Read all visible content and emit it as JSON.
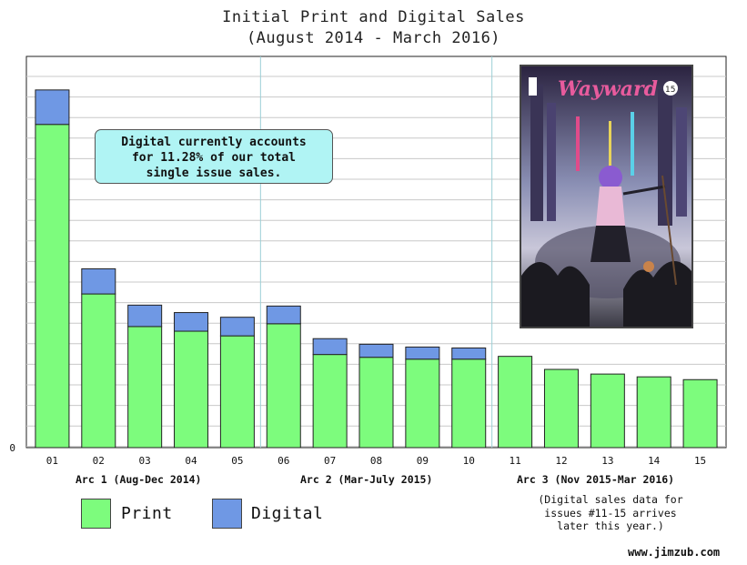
{
  "title_line1": "Initial Print and Digital Sales",
  "title_line2": "(August 2014 - March 2016)",
  "callout": {
    "line1": "Digital currently accounts",
    "line2": "for 11.28% of our total",
    "line3": "single issue sales."
  },
  "arcs": [
    {
      "label": "Arc 1 (Aug-Dec 2014)"
    },
    {
      "label": "Arc 2 (Mar-July 2015)"
    },
    {
      "label": "Arc 3 (Nov 2015-Mar 2016)"
    }
  ],
  "legend": {
    "print": "Print",
    "digital": "Digital"
  },
  "note": {
    "line1": "(Digital sales data for",
    "line2": "issues #11-15 arrives",
    "line3": "later this year.)"
  },
  "credit": "www.jimzub.com",
  "cover": {
    "logo": "Wayward",
    "issue": "15"
  },
  "colors": {
    "print": "#7dfc7d",
    "digital": "#6f98e4",
    "callout": "#b0f4f4"
  },
  "chart_data": {
    "type": "bar",
    "stacked": true,
    "categories": [
      "01",
      "02",
      "03",
      "04",
      "05",
      "06",
      "07",
      "08",
      "09",
      "10",
      "11",
      "12",
      "13",
      "14",
      "15"
    ],
    "series": [
      {
        "name": "Print",
        "values": [
          347,
          165,
          130,
          125,
          120,
          133,
          100,
          97,
          95,
          95,
          98,
          84,
          79,
          76,
          73
        ]
      },
      {
        "name": "Digital",
        "values": [
          37,
          27,
          23,
          20,
          20,
          19,
          17,
          14,
          13,
          12,
          0,
          0,
          0,
          0,
          0
        ]
      }
    ],
    "ylim": [
      0,
      420
    ],
    "yticks_shown": [
      "0"
    ],
    "grid": true,
    "legend_position": "bottom-left"
  }
}
